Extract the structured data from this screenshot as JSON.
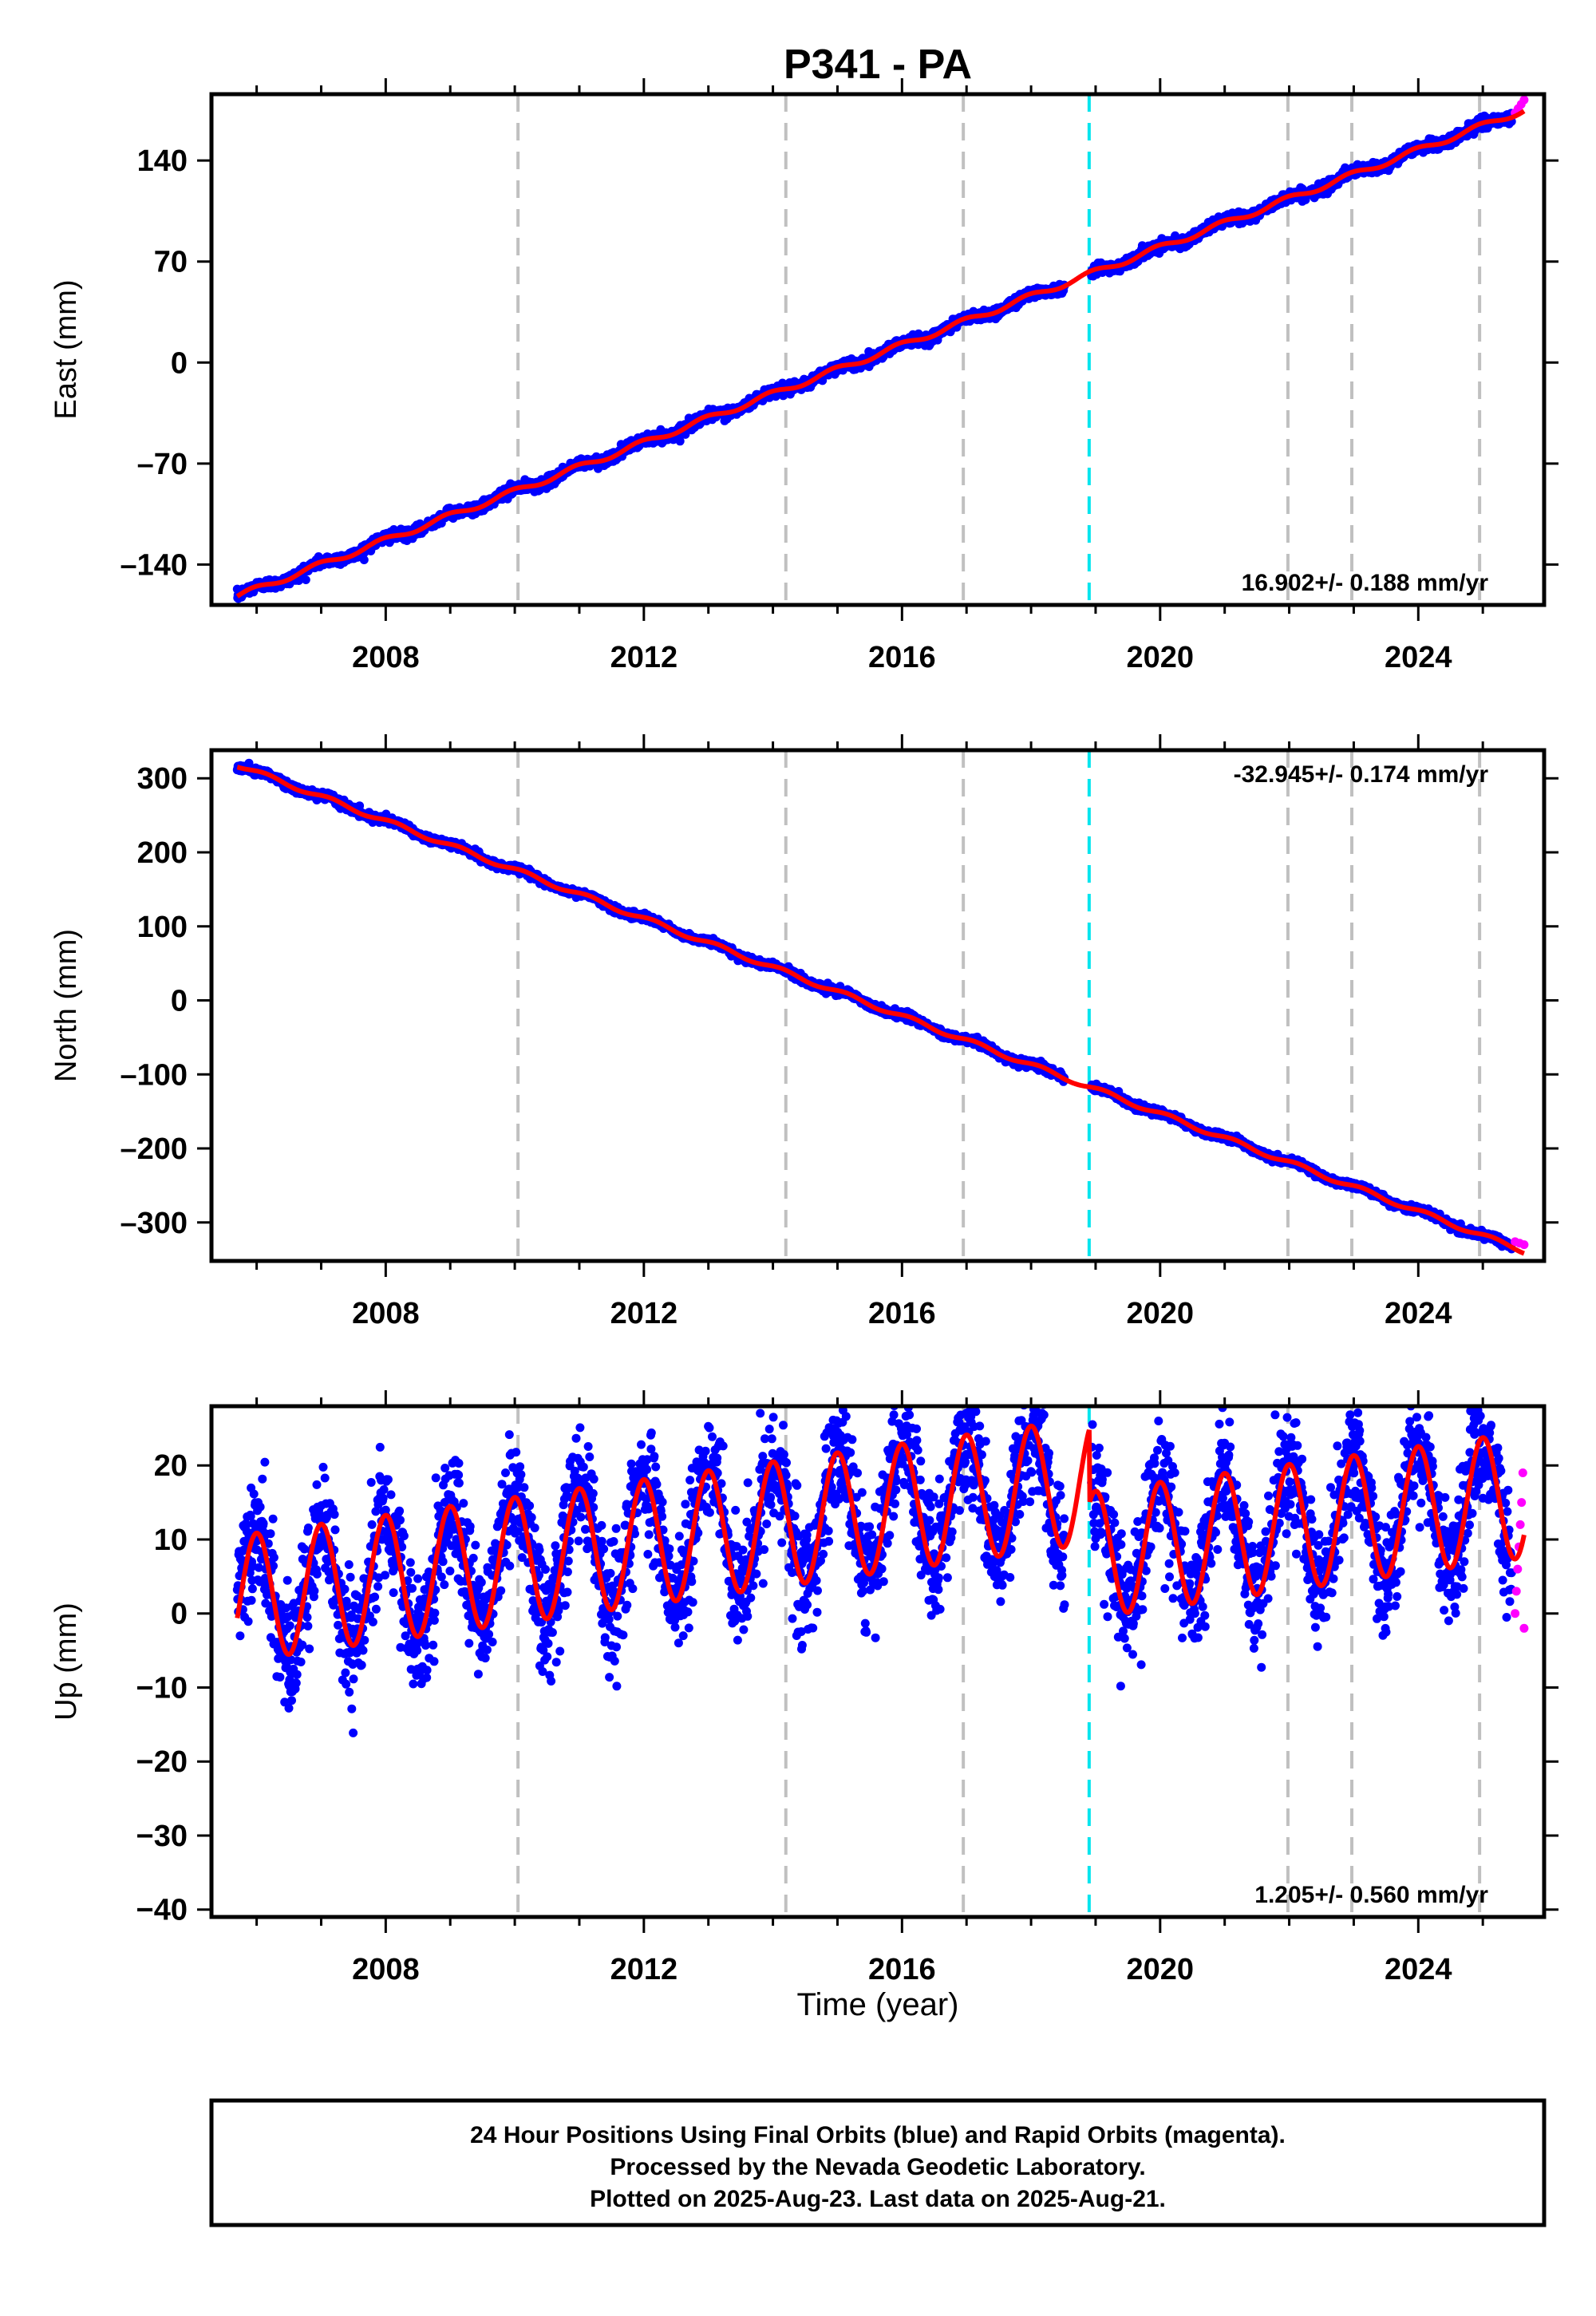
{
  "title": "P341 - PA",
  "xlabel": "Time (year)",
  "footer": {
    "line1": "24 Hour Positions Using Final Orbits (blue) and Rapid Orbits (magenta).",
    "line2": "Processed by the Nevada Geodetic Laboratory.",
    "line3": "Plotted on 2025-Aug-23. Last data on 2025-Aug-21."
  },
  "colors": {
    "final": "#0000ff",
    "rapid": "#ff00ff",
    "model": "#ff0000",
    "event_cyan": "#00e5ee",
    "event_gray": "#c0c0c0"
  },
  "chart_data": [
    {
      "type": "scatter",
      "component": "east",
      "ylabel": "East (mm)",
      "xlim": [
        2005.3,
        2025.95
      ],
      "ylim": [
        -168,
        186
      ],
      "xticks": [
        "2008",
        "2012",
        "2016",
        "2020",
        "2024"
      ],
      "yticks": [
        "140",
        "70",
        "0",
        "–70",
        "–140"
      ],
      "rate_label": "16.902+/- 0.188 mm/yr",
      "rate_position": "bottom-right",
      "gray_events": [
        2010.05,
        2014.2,
        2016.95,
        2021.98,
        2022.97,
        2024.95
      ],
      "cyan_event": 2018.9,
      "start_value": -162,
      "rate": 16.902,
      "break_offset": 0,
      "seasonal": {
        "amp": 2,
        "phase": 0.3
      },
      "noise": 1.8,
      "final_end": 2025.45,
      "rapid": {
        "start": 2025.5,
        "end": 2025.64,
        "values": [
          173,
          176,
          179,
          182
        ]
      },
      "data_range": [
        2005.7,
        2025.64
      ],
      "gap": [
        2018.52,
        2018.93
      ]
    },
    {
      "type": "scatter",
      "component": "north",
      "ylabel": "North (mm)",
      "xlim": [
        2005.3,
        2025.95
      ],
      "ylim": [
        -352,
        338
      ],
      "xticks": [
        "2008",
        "2012",
        "2016",
        "2020",
        "2024"
      ],
      "yticks": [
        "300",
        "200",
        "100",
        "0",
        "–100",
        "–200",
        "–300"
      ],
      "rate_label": "-32.945+/- 0.174 mm/yr",
      "rate_position": "top-right",
      "gray_events": [
        2010.05,
        2014.2,
        2016.95,
        2021.98,
        2022.97,
        2024.95
      ],
      "cyan_event": 2018.9,
      "start_value": 318,
      "rate": -32.945,
      "break_offset": 0,
      "seasonal": {
        "amp": 3,
        "phase": 0.1
      },
      "noise": 2.5,
      "final_end": 2025.45,
      "rapid": {
        "start": 2025.5,
        "end": 2025.64,
        "values": [
          -326,
          -328,
          -330
        ]
      },
      "data_range": [
        2005.7,
        2025.64
      ],
      "gap": [
        2018.52,
        2018.93
      ]
    },
    {
      "type": "scatter",
      "component": "up",
      "ylabel": "Up (mm)",
      "xlim": [
        2005.3,
        2025.95
      ],
      "ylim": [
        -41,
        28
      ],
      "xticks": [
        "2008",
        "2012",
        "2016",
        "2020",
        "2024"
      ],
      "yticks": [
        "20",
        "10",
        "0",
        "−10",
        "−20",
        "−30",
        "−40"
      ],
      "rate_label": "1.205+/- 0.560 mm/yr",
      "rate_position": "bottom-right",
      "gray_events": [
        2010.05,
        2014.2,
        2016.95,
        2021.98,
        2022.97,
        2024.95
      ],
      "cyan_event": 2018.9,
      "start_value": 2,
      "rate": 1.205,
      "break_offset": -10,
      "seasonal": {
        "amp": 8.5,
        "phase": 0.25
      },
      "noise": 4.0,
      "final_end": 2025.45,
      "rapid": {
        "start": 2025.5,
        "end": 2025.64,
        "values": [
          0,
          3,
          6,
          9,
          12,
          15,
          19,
          -2
        ]
      },
      "data_range": [
        2005.7,
        2025.64
      ],
      "gap": [
        2018.52,
        2018.93
      ]
    }
  ]
}
